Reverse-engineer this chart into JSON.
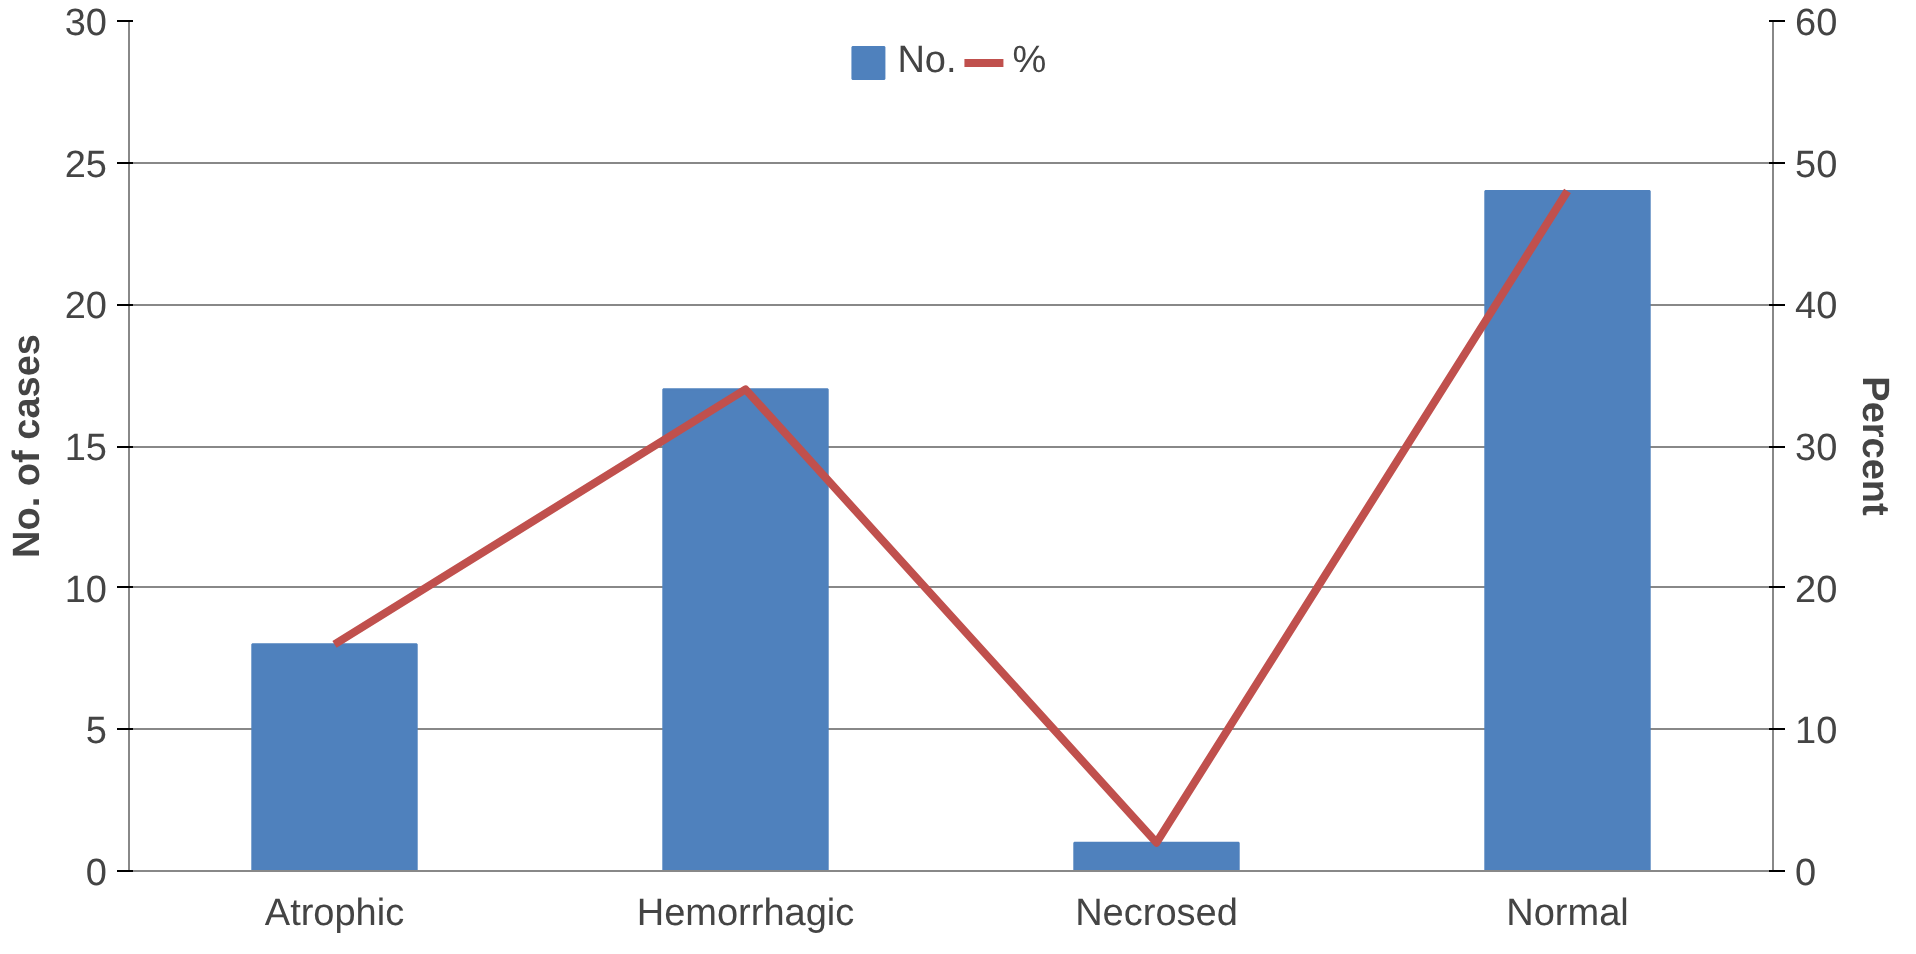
{
  "chart_data": {
    "type": "bar",
    "categories": [
      "Atrophic",
      "Hemorrhagic",
      "Necrosed",
      "Normal"
    ],
    "series": [
      {
        "name": "No.",
        "color": "#4f81bd",
        "values": [
          8,
          17,
          1,
          24
        ]
      },
      {
        "name": "%",
        "color": "#c0504d",
        "type": "line",
        "axis": "y2",
        "values": [
          16,
          34,
          2,
          48
        ]
      }
    ],
    "ylabel": "No. of cases",
    "y2label": "Percent",
    "ylim": [
      0,
      30
    ],
    "yticks": [
      0,
      5,
      10,
      15,
      20,
      25,
      30
    ],
    "y2lim": [
      0,
      60
    ],
    "y2ticks": [
      0,
      10,
      20,
      30,
      40,
      50,
      60
    ],
    "grid": "y",
    "legend": "top"
  }
}
